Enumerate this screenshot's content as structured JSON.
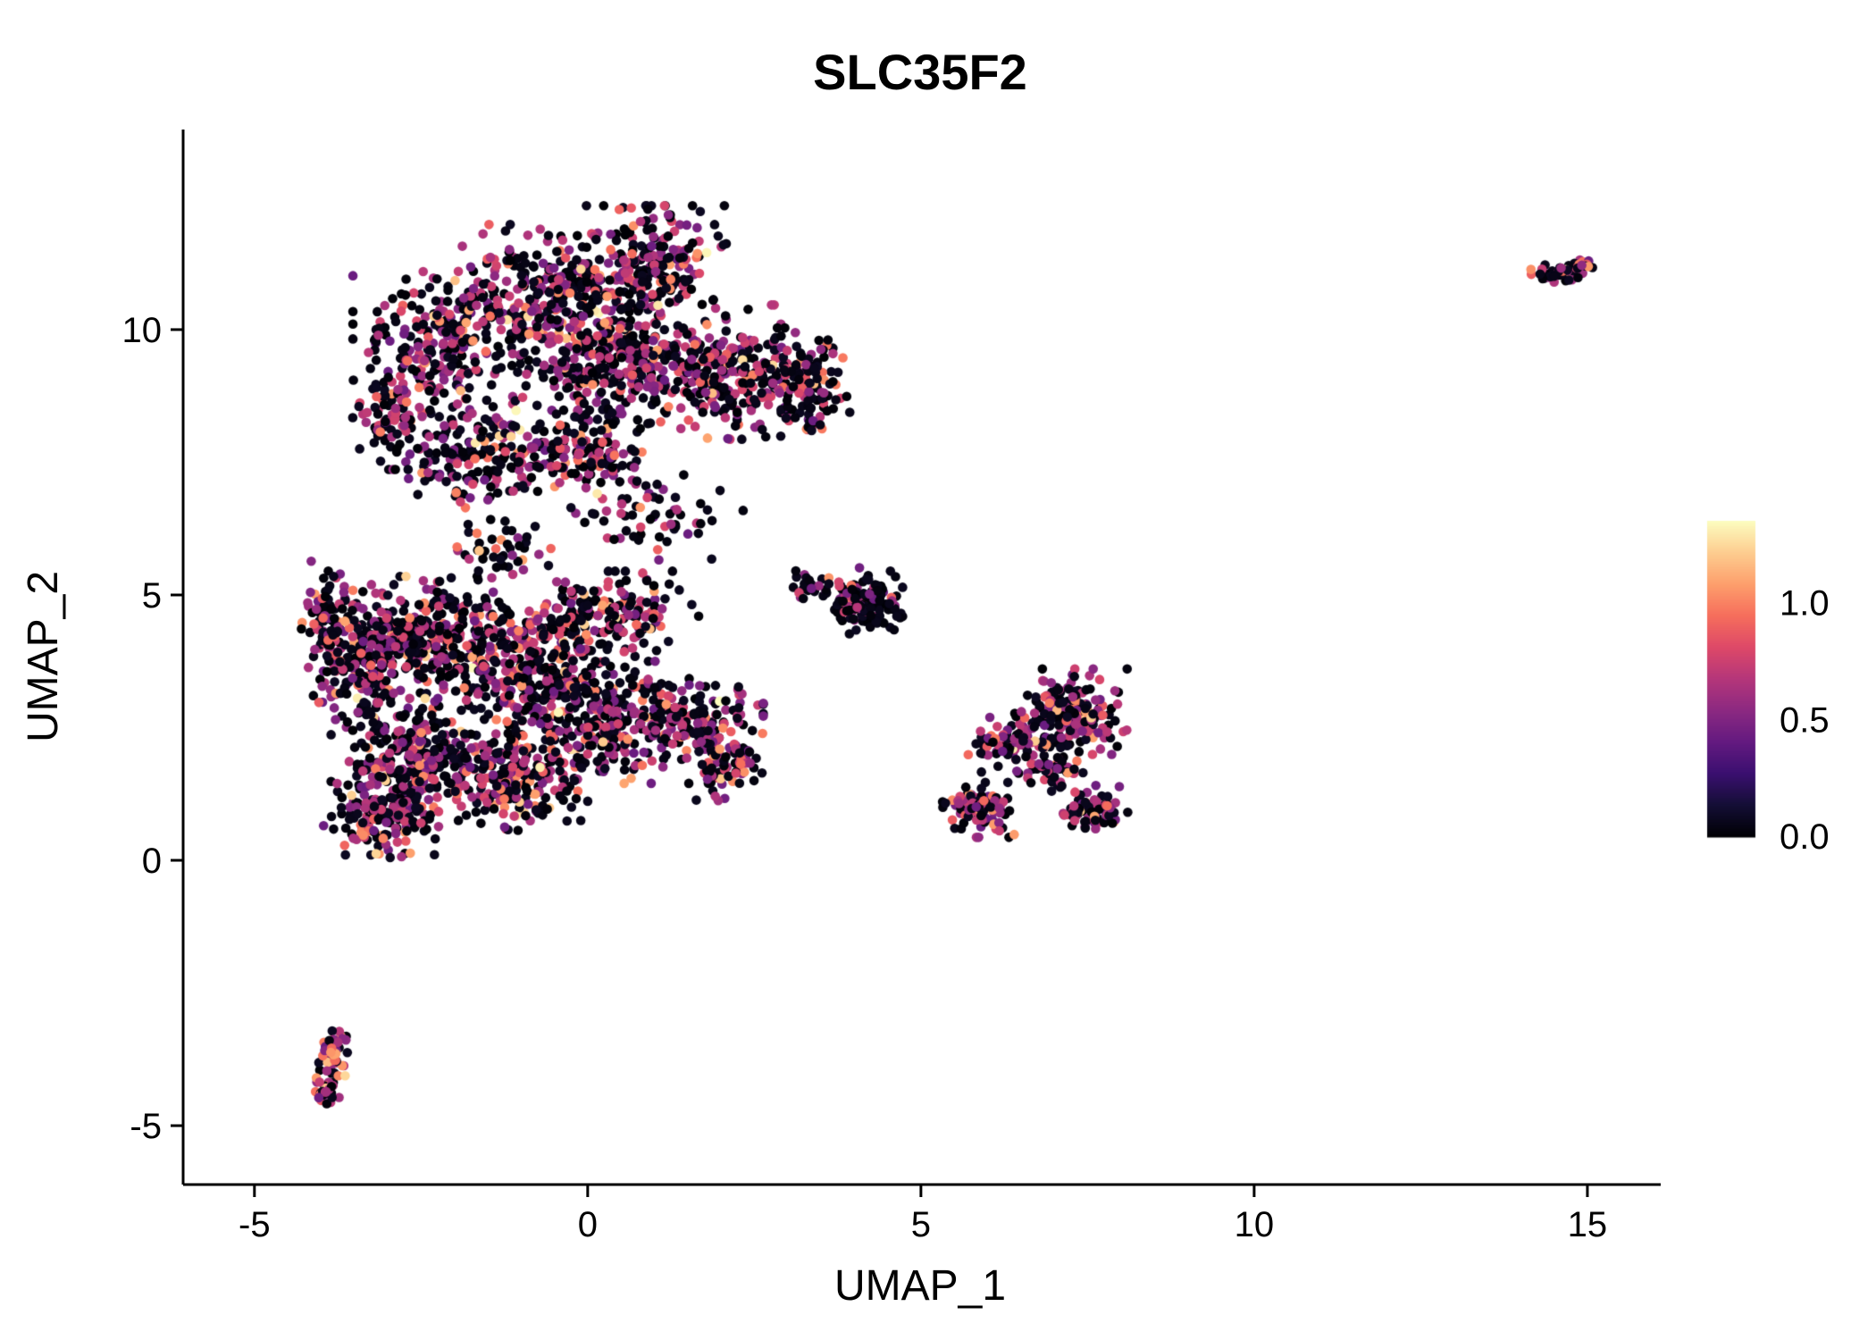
{
  "title": "SLC35F2",
  "chart_data": {
    "type": "scatter",
    "title": "SLC35F2",
    "xlabel": "UMAP_1",
    "ylabel": "UMAP_2",
    "xlim": [
      -6.07,
      16.1
    ],
    "ylim": [
      -6.11,
      13.77
    ],
    "xticks": [
      -5,
      0,
      5,
      10,
      15
    ],
    "yticks": [
      -5,
      0,
      5,
      10
    ],
    "background": "#ffffff",
    "axis_color": "#000000",
    "point_radius": 5.3,
    "legend_position": "right",
    "grid": false,
    "colorbar": {
      "tick_labels": [
        "0.0",
        "0.5",
        "1.0"
      ],
      "tick_values": [
        0.0,
        0.5,
        1.0
      ],
      "vmin": 0.0,
      "vmax": 1.35,
      "colormap": "magma"
    },
    "colormap_stops": [
      [
        0.0,
        "#000004"
      ],
      [
        0.1,
        "#140E36"
      ],
      [
        0.2,
        "#3B0F70"
      ],
      [
        0.3,
        "#641A80"
      ],
      [
        0.4,
        "#8C2981"
      ],
      [
        0.5,
        "#B5367A"
      ],
      [
        0.6,
        "#DE4968"
      ],
      [
        0.7,
        "#F66E5C"
      ],
      [
        0.8,
        "#FD9F6C"
      ],
      [
        0.9,
        "#FDCD90"
      ],
      [
        1.0,
        "#FCFDBF"
      ]
    ],
    "expression_levels": {
      "zero": [
        0.0,
        0.08
      ],
      "mid": [
        0.42,
        0.8
      ],
      "high": [
        0.85,
        1.1
      ],
      "max": [
        1.15,
        1.35
      ]
    },
    "default_fractions": [
      0.54,
      0.36,
      0.085
    ],
    "clusters": [
      {
        "name": "top-left-lobe",
        "cx": -2.2,
        "cy": 9.7,
        "rx": 1.15,
        "ry": 1.3,
        "n": 230
      },
      {
        "name": "top-mid-upper",
        "cx": -0.6,
        "cy": 10.6,
        "rx": 1.3,
        "ry": 1.2,
        "n": 300
      },
      {
        "name": "top-peak",
        "cx": 1.0,
        "cy": 11.3,
        "rx": 0.95,
        "ry": 0.9,
        "n": 190
      },
      {
        "name": "top-core",
        "cx": 0.6,
        "cy": 9.4,
        "rx": 1.5,
        "ry": 1.1,
        "n": 330
      },
      {
        "name": "top-right-lobe",
        "cx": 2.3,
        "cy": 9.2,
        "rx": 1.2,
        "ry": 1.1,
        "n": 250
      },
      {
        "name": "top-right-edge",
        "cx": 3.3,
        "cy": 8.9,
        "rx": 0.55,
        "ry": 0.85,
        "n": 90
      },
      {
        "name": "neck-left",
        "cx": -1.6,
        "cy": 7.6,
        "rx": 1.1,
        "ry": 0.85,
        "n": 160
      },
      {
        "name": "neck-mid",
        "cx": 0.0,
        "cy": 7.7,
        "rx": 1.0,
        "ry": 0.7,
        "n": 140
      },
      {
        "name": "top-left-edge",
        "cx": -2.95,
        "cy": 8.4,
        "rx": 0.5,
        "ry": 0.9,
        "n": 80
      },
      {
        "name": "below-top-sparse",
        "cx": 1.0,
        "cy": 6.4,
        "rx": 1.2,
        "ry": 0.75,
        "n": 60,
        "f": [
          0.62,
          0.3,
          0.07
        ]
      },
      {
        "name": "neck-lower",
        "cx": -1.3,
        "cy": 5.9,
        "rx": 0.65,
        "ry": 0.5,
        "n": 45,
        "f": [
          0.58,
          0.33,
          0.08
        ]
      },
      {
        "name": "mid-upper-left",
        "cx": -2.4,
        "cy": 4.2,
        "rx": 1.3,
        "ry": 1.0,
        "n": 330
      },
      {
        "name": "mid-upper-center",
        "cx": -0.9,
        "cy": 3.6,
        "rx": 1.4,
        "ry": 1.1,
        "n": 330
      },
      {
        "name": "mid-left-strip",
        "cx": -3.5,
        "cy": 3.7,
        "rx": 0.6,
        "ry": 1.3,
        "n": 150
      },
      {
        "name": "mid-center-left",
        "cx": -2.7,
        "cy": 2.0,
        "rx": 1.0,
        "ry": 1.0,
        "n": 230
      },
      {
        "name": "mid-center",
        "cx": -1.2,
        "cy": 1.6,
        "rx": 1.2,
        "ry": 0.9,
        "n": 250
      },
      {
        "name": "mid-bottom-left",
        "cx": -3.1,
        "cy": 0.8,
        "rx": 0.75,
        "ry": 0.65,
        "n": 150
      },
      {
        "name": "mid-right-center",
        "cx": 0.3,
        "cy": 2.6,
        "rx": 1.2,
        "ry": 1.0,
        "n": 230
      },
      {
        "name": "mid-right-lobe",
        "cx": 1.6,
        "cy": 2.6,
        "rx": 0.9,
        "ry": 0.8,
        "n": 150
      },
      {
        "name": "mid-upper-right",
        "cx": 0.4,
        "cy": 4.7,
        "rx": 1.1,
        "ry": 0.65,
        "n": 150
      },
      {
        "name": "mid-leftmost",
        "cx": -3.95,
        "cy": 4.6,
        "rx": 0.3,
        "ry": 0.9,
        "n": 60
      },
      {
        "name": "mid-lower-right",
        "cx": 2.1,
        "cy": 1.7,
        "rx": 0.6,
        "ry": 0.5,
        "n": 60
      },
      {
        "name": "small-center-right",
        "cx": 4.15,
        "cy": 4.9,
        "rx": 0.5,
        "ry": 0.55,
        "n": 150,
        "f": [
          0.74,
          0.2,
          0.05
        ]
      },
      {
        "name": "small-cr-outliers",
        "cx": 3.4,
        "cy": 5.2,
        "rx": 0.3,
        "ry": 0.28,
        "n": 25,
        "f": [
          0.74,
          0.2,
          0.05
        ]
      },
      {
        "name": "right-upper",
        "cx": 7.3,
        "cy": 2.8,
        "rx": 0.75,
        "ry": 0.7,
        "n": 170,
        "f": [
          0.5,
          0.38,
          0.1
        ]
      },
      {
        "name": "right-mid",
        "cx": 6.4,
        "cy": 2.2,
        "rx": 0.6,
        "ry": 0.5,
        "n": 90,
        "f": [
          0.5,
          0.38,
          0.1
        ]
      },
      {
        "name": "right-lower-left",
        "cx": 5.9,
        "cy": 0.95,
        "rx": 0.5,
        "ry": 0.45,
        "n": 90,
        "f": [
          0.5,
          0.38,
          0.1
        ]
      },
      {
        "name": "right-lower-right",
        "cx": 7.6,
        "cy": 0.95,
        "rx": 0.45,
        "ry": 0.4,
        "n": 70,
        "f": [
          0.5,
          0.38,
          0.1
        ]
      },
      {
        "name": "right-bridge",
        "cx": 6.9,
        "cy": 1.7,
        "rx": 0.5,
        "ry": 0.45,
        "n": 50,
        "f": [
          0.5,
          0.38,
          0.1
        ]
      },
      {
        "name": "bottom-left-top",
        "cx": -3.82,
        "cy": -3.6,
        "rx": 0.2,
        "ry": 0.4,
        "n": 55,
        "f": [
          0.3,
          0.42,
          0.24
        ]
      },
      {
        "name": "bottom-left-bottom",
        "cx": -3.9,
        "cy": -4.3,
        "rx": 0.18,
        "ry": 0.25,
        "n": 45,
        "f": [
          0.38,
          0.42,
          0.17
        ]
      },
      {
        "name": "far-right-island",
        "cx": 14.55,
        "cy": 11.05,
        "rx": 0.42,
        "ry": 0.16,
        "n": 55,
        "f": [
          0.55,
          0.28,
          0.14
        ]
      },
      {
        "name": "far-right-tip",
        "cx": 14.95,
        "cy": 11.2,
        "rx": 0.15,
        "ry": 0.12,
        "n": 15,
        "f": [
          0.45,
          0.3,
          0.2
        ]
      }
    ]
  }
}
